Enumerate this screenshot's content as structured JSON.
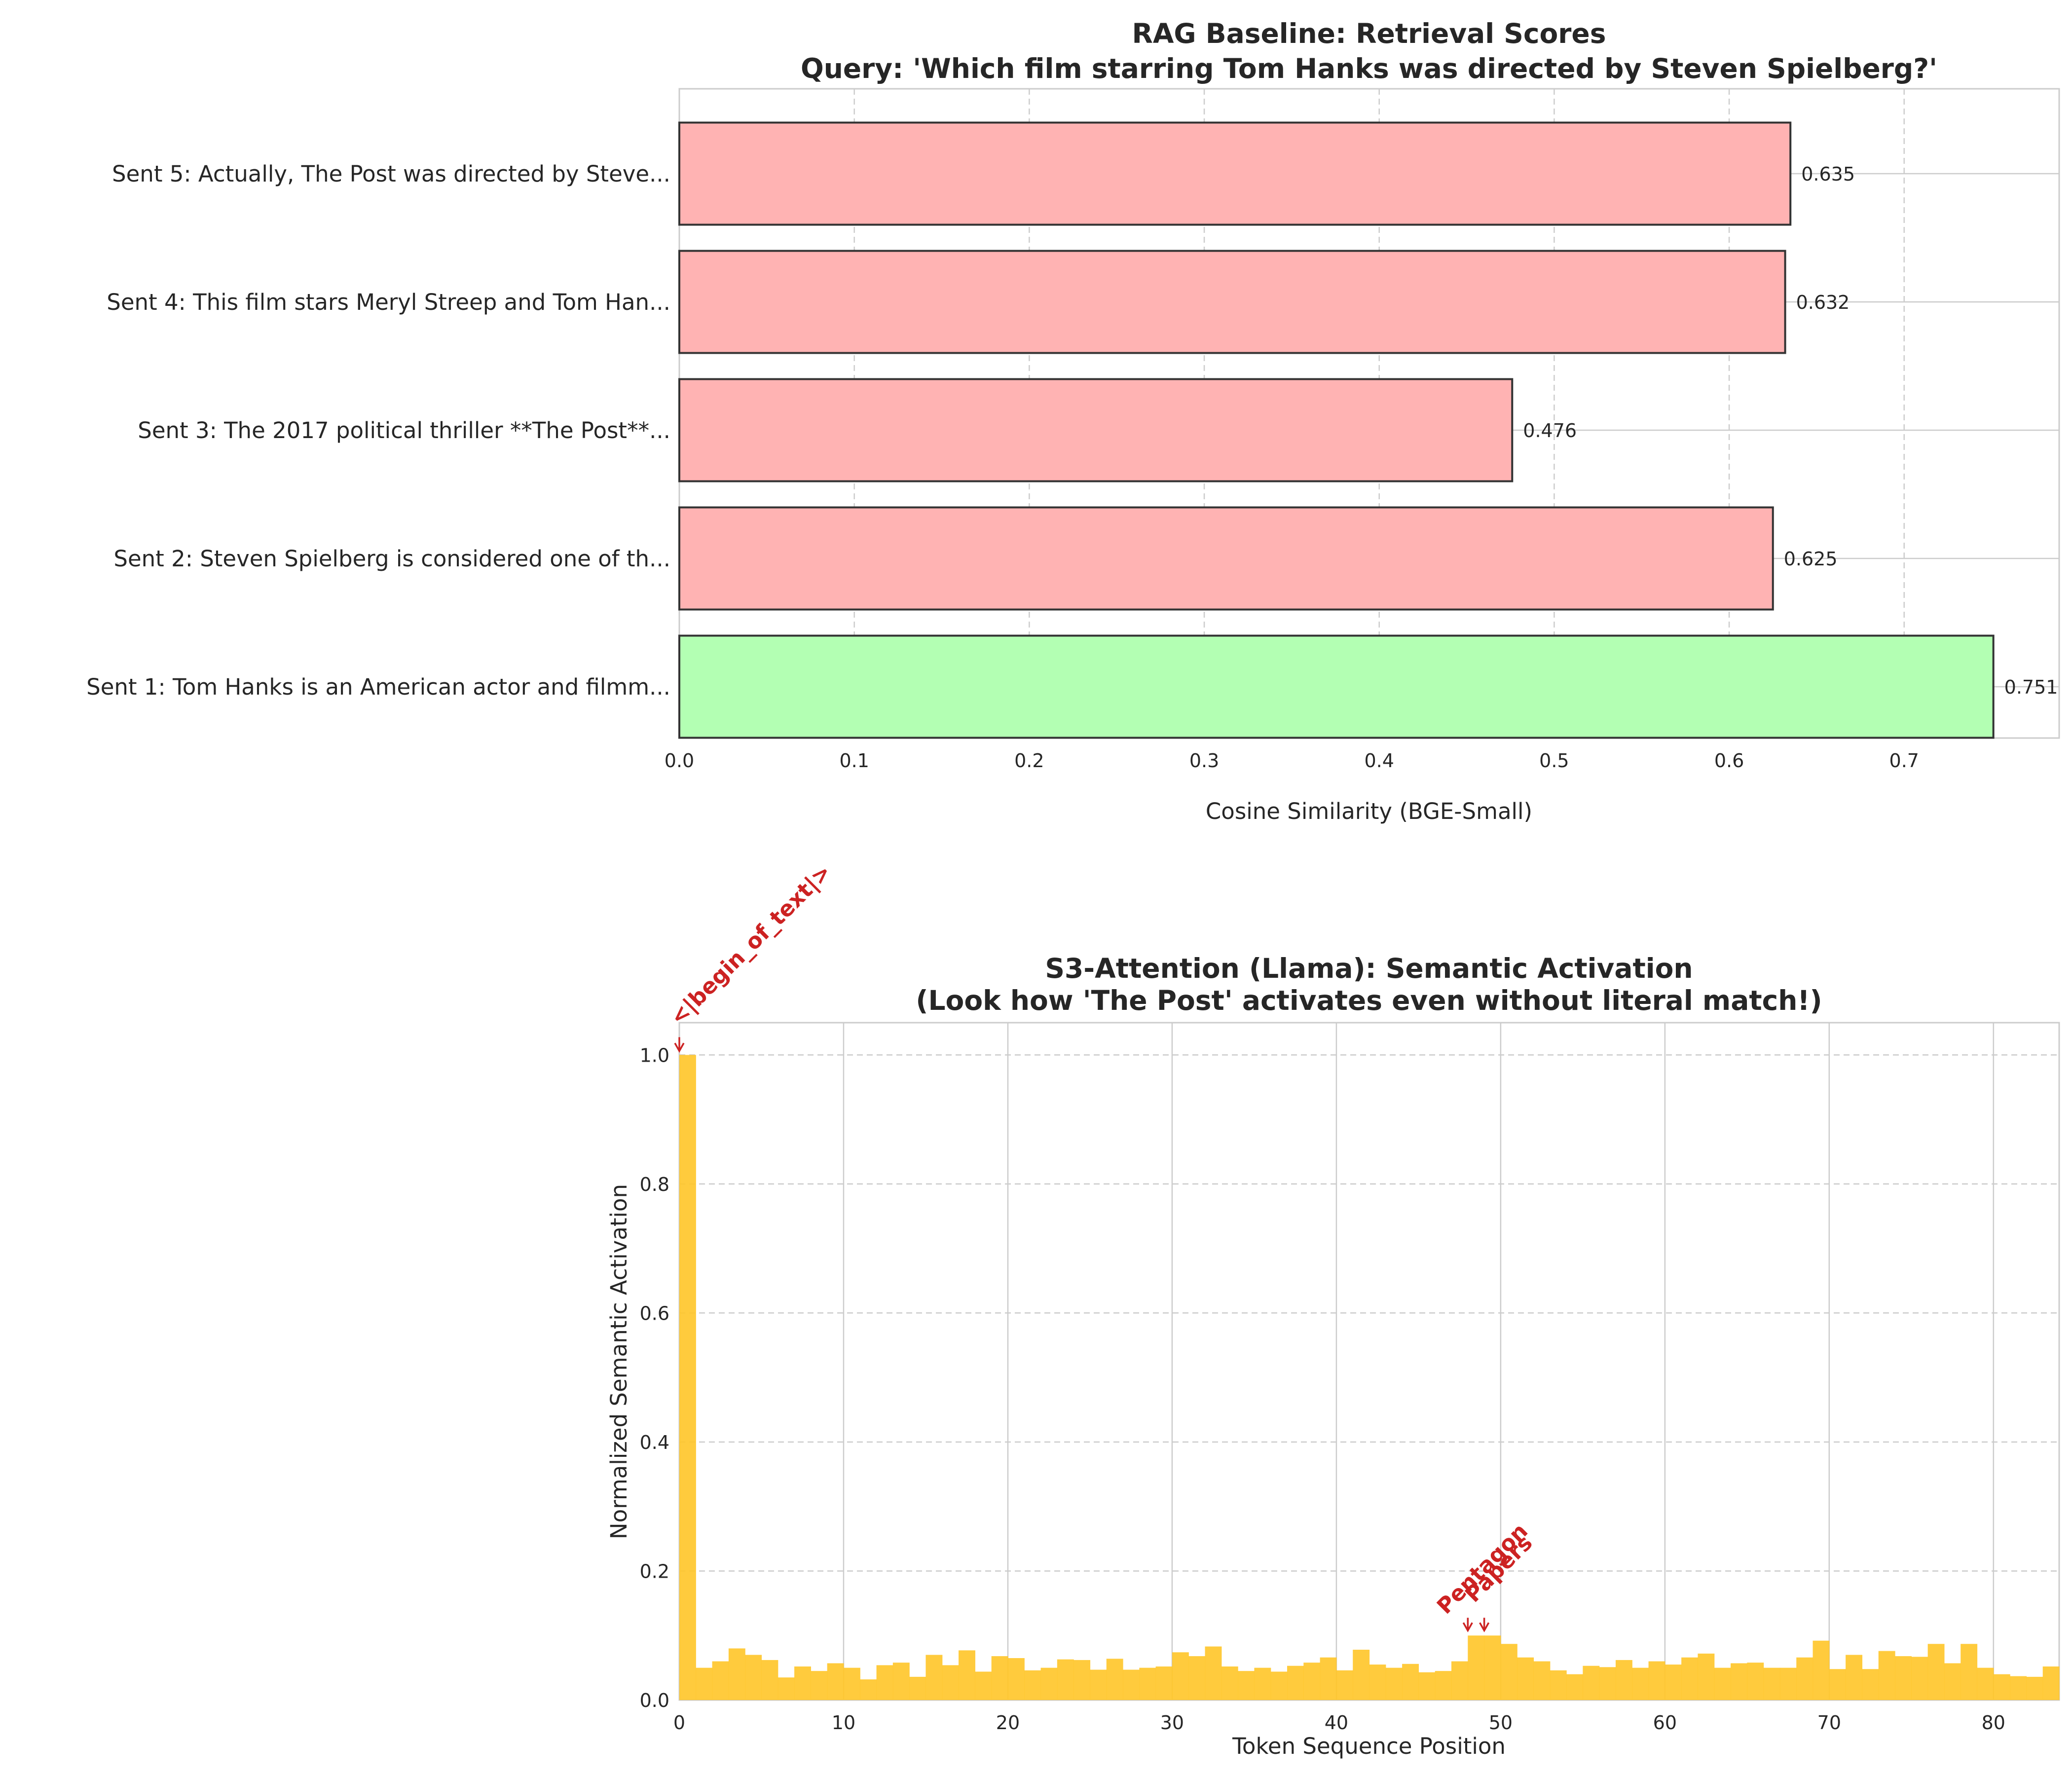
{
  "chart_data": [
    {
      "type": "bar",
      "orientation": "horizontal",
      "title": "RAG Baseline: Retrieval Scores",
      "subtitle": "Query: 'Which film starring Tom Hanks was directed by Steven Spielberg?'",
      "xlabel": "Cosine Similarity (BGE-Small)",
      "ylabel": "",
      "xlim": [
        0,
        0.7886
      ],
      "xticks": [
        "0.0",
        "0.1",
        "0.2",
        "0.3",
        "0.4",
        "0.5",
        "0.6",
        "0.7"
      ],
      "categories": [
        "Sent 1: Tom Hanks is an American actor and filmm...",
        "Sent 2: Steven Spielberg is considered one of th...",
        "Sent 3: The 2017 political thriller **The Post**...",
        "Sent 4: This film stars Meryl Streep and Tom Han...",
        "Sent 5: Actually, The Post was directed by Steve..."
      ],
      "values": [
        0.751,
        0.625,
        0.476,
        0.632,
        0.635
      ],
      "value_labels": [
        "0.751",
        "0.625",
        "0.476",
        "0.632",
        "0.635"
      ],
      "highlight_index": 0,
      "colors": {
        "default": "#ffb3b3",
        "highlight": "#b3ffb3",
        "edge": "#333333"
      },
      "grid": true
    },
    {
      "type": "bar",
      "title": "S3-Attention (Llama): Semantic Activation",
      "subtitle": "(Look how 'The Post' activates even without literal match!)",
      "xlabel": "Token Sequence Position",
      "ylabel": "Normalized Semantic Activation",
      "xlim": [
        0,
        84
      ],
      "ylim": [
        0,
        1.05
      ],
      "xticks": [
        "0",
        "10",
        "20",
        "30",
        "40",
        "50",
        "60",
        "70",
        "80"
      ],
      "yticks": [
        "0.0",
        "0.2",
        "0.4",
        "0.6",
        "0.8",
        "1.0"
      ],
      "values": [
        1.0,
        0.05,
        0.06,
        0.08,
        0.07,
        0.062,
        0.035,
        0.052,
        0.045,
        0.057,
        0.05,
        0.032,
        0.054,
        0.058,
        0.036,
        0.07,
        0.054,
        0.077,
        0.044,
        0.068,
        0.065,
        0.046,
        0.05,
        0.063,
        0.062,
        0.047,
        0.064,
        0.047,
        0.05,
        0.052,
        0.074,
        0.068,
        0.083,
        0.052,
        0.045,
        0.05,
        0.044,
        0.053,
        0.058,
        0.066,
        0.046,
        0.078,
        0.055,
        0.05,
        0.056,
        0.043,
        0.045,
        0.06,
        0.1,
        0.1,
        0.087,
        0.066,
        0.06,
        0.046,
        0.04,
        0.053,
        0.051,
        0.062,
        0.05,
        0.06,
        0.055,
        0.066,
        0.072,
        0.05,
        0.057,
        0.058,
        0.05,
        0.05,
        0.066,
        0.092,
        0.048,
        0.07,
        0.048,
        0.076,
        0.068,
        0.067,
        0.087,
        0.057,
        0.087,
        0.05,
        0.04,
        0.037,
        0.036,
        0.052
      ],
      "bar_color": "#ffc72c",
      "annotations": [
        {
          "text": "<|begin_of_text|>",
          "x": 0,
          "y": 1.0,
          "color": "#cc2222"
        },
        {
          "text": "Pentagon",
          "x": 48,
          "y": 0.1,
          "color": "#cc2222"
        },
        {
          "text": "Papers",
          "x": 49,
          "y": 0.1,
          "color": "#cc2222"
        }
      ],
      "grid": true
    }
  ]
}
